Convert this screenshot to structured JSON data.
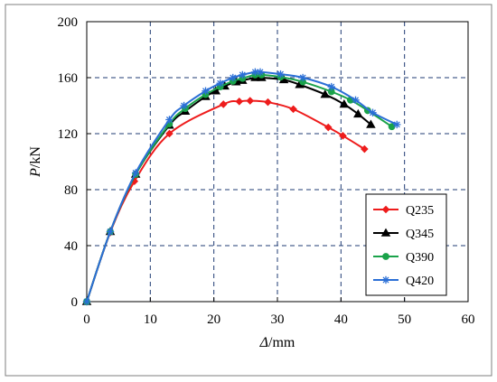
{
  "chart_data": {
    "type": "line",
    "title": "",
    "xlabel_italic": "Δ",
    "xlabel_rest": "/mm",
    "ylabel_italic": "P",
    "ylabel_rest": "/kN",
    "xlim": [
      0,
      60
    ],
    "ylim": [
      0,
      200
    ],
    "x_ticks": [
      0,
      10,
      20,
      30,
      40,
      50,
      60
    ],
    "y_ticks": [
      0,
      40,
      80,
      120,
      160,
      200
    ],
    "x_tick_labels": [
      "0",
      "10",
      "20",
      "30",
      "40",
      "50",
      "60"
    ],
    "y_tick_labels": [
      "0",
      "40",
      "80",
      "120",
      "160",
      "200"
    ],
    "grid": true,
    "grid_style": "dashed",
    "legend_position": "bottom-right",
    "series": [
      {
        "name": "Q235",
        "color": "#ee1c1c",
        "marker": "diamond",
        "points": [
          [
            0,
            0
          ],
          [
            3.7,
            49.5
          ],
          [
            7.5,
            86
          ],
          [
            13,
            120
          ],
          [
            21.5,
            141
          ],
          [
            24,
            143
          ],
          [
            25.7,
            143.5
          ],
          [
            28.5,
            142.5
          ],
          [
            32.5,
            137.5
          ],
          [
            38,
            124.5
          ],
          [
            40.3,
            118.5
          ],
          [
            43.7,
            109
          ]
        ]
      },
      {
        "name": "Q345",
        "color": "#000000",
        "marker": "triangle",
        "points": [
          [
            0,
            0
          ],
          [
            3.7,
            50
          ],
          [
            7.7,
            91
          ],
          [
            13,
            126
          ],
          [
            15.5,
            136
          ],
          [
            18.7,
            146.5
          ],
          [
            20.3,
            150.5
          ],
          [
            21.7,
            154
          ],
          [
            23.5,
            157
          ],
          [
            24.5,
            158
          ],
          [
            26.5,
            160
          ],
          [
            27.5,
            160
          ],
          [
            31,
            158.5
          ],
          [
            33.5,
            155
          ],
          [
            37.5,
            148
          ],
          [
            40.5,
            141
          ],
          [
            42.7,
            134
          ],
          [
            44.7,
            126.5
          ]
        ]
      },
      {
        "name": "Q390",
        "color": "#1aa34a",
        "marker": "circle",
        "points": [
          [
            0,
            0
          ],
          [
            3.7,
            50
          ],
          [
            7.7,
            91
          ],
          [
            13,
            127
          ],
          [
            15.5,
            138
          ],
          [
            18.7,
            148
          ],
          [
            21,
            153.5
          ],
          [
            23,
            157.5
          ],
          [
            24.5,
            159.5
          ],
          [
            26.5,
            162
          ],
          [
            27.5,
            162
          ],
          [
            30.5,
            160.5
          ],
          [
            34,
            157
          ],
          [
            38.5,
            150
          ],
          [
            41.5,
            144
          ],
          [
            44.2,
            136.5
          ],
          [
            48,
            125
          ]
        ]
      },
      {
        "name": "Q420",
        "color": "#2b6fd6",
        "marker": "asterisk",
        "points": [
          [
            0,
            0
          ],
          [
            3.7,
            50
          ],
          [
            7.7,
            92
          ],
          [
            13,
            130
          ],
          [
            15.3,
            140
          ],
          [
            18.7,
            150.5
          ],
          [
            21,
            156
          ],
          [
            23,
            160
          ],
          [
            24.5,
            162
          ],
          [
            26.5,
            164
          ],
          [
            27.3,
            164
          ],
          [
            30.5,
            162.5
          ],
          [
            34,
            160
          ],
          [
            38.5,
            153.5
          ],
          [
            42.3,
            144
          ],
          [
            45,
            135
          ],
          [
            48.8,
            126.5
          ]
        ]
      }
    ]
  }
}
